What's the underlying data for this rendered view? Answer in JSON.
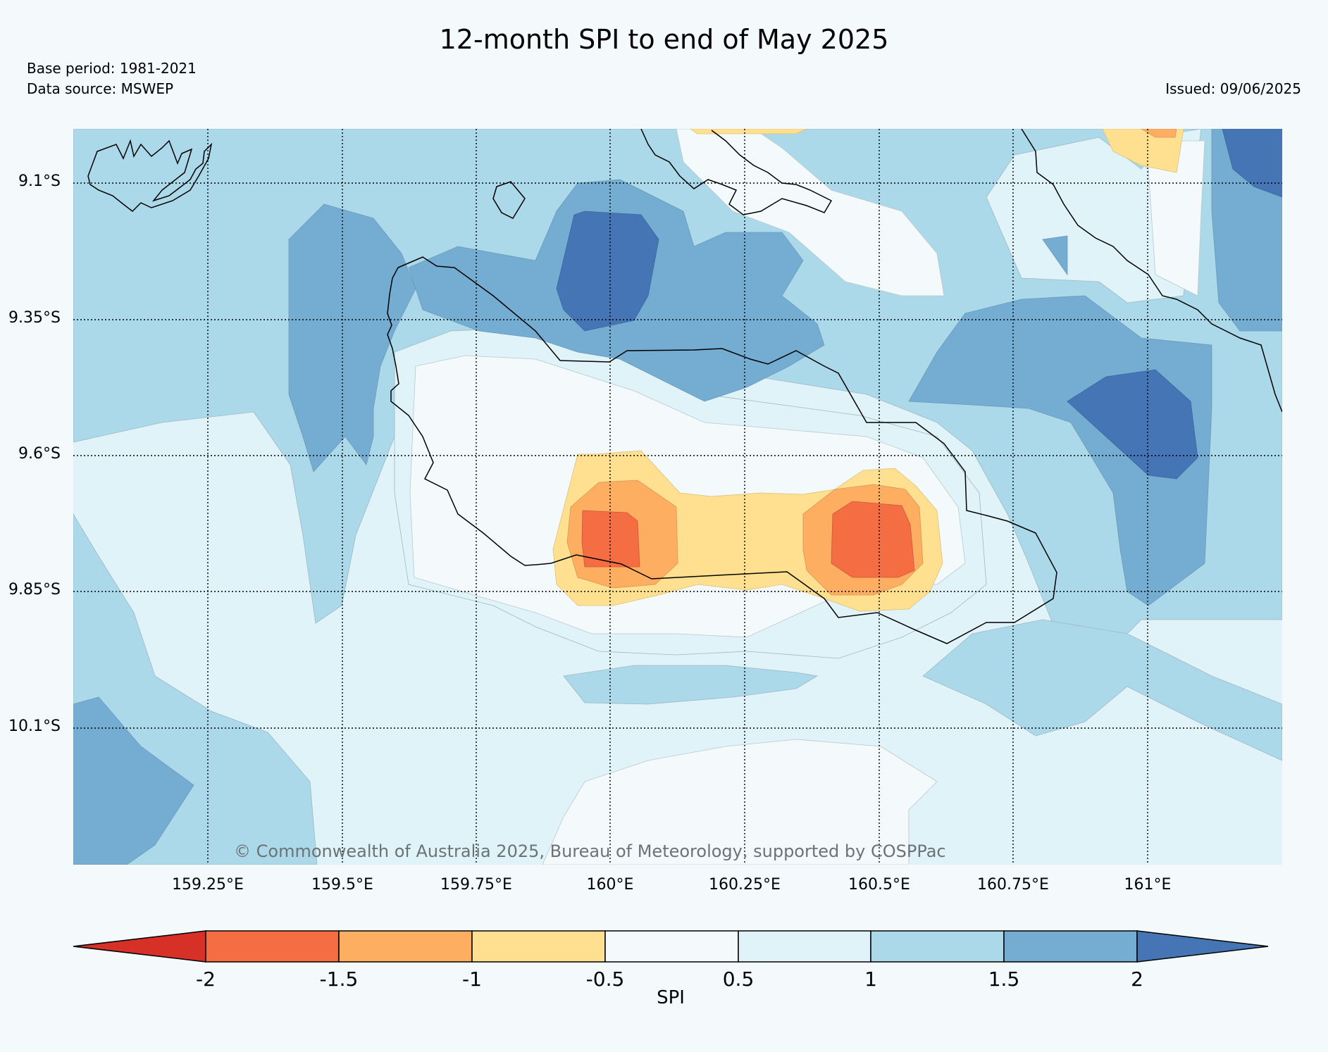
{
  "title": "12-month SPI to end of May 2025",
  "base_period": "Base period: 1981-2021",
  "data_source": "Data source: MSWEP",
  "issued": "Issued: 09/06/2025",
  "copyright": "© Commonwealth of Australia 2025, Bureau of Meteorology, supported by COSPPac",
  "map": {
    "lat_labels": [
      "9.1°S",
      "9.35°S",
      "9.6°S",
      "9.85°S",
      "10.1°S"
    ],
    "lon_labels": [
      "159.25°E",
      "159.5°E",
      "159.75°E",
      "160°E",
      "160.25°E",
      "160.5°E",
      "160.75°E",
      "161°E"
    ],
    "gridlines": "dotted"
  },
  "colorbar": {
    "label": "SPI",
    "ticks": [
      "-2",
      "-1.5",
      "-1",
      "-0.5",
      "0.5",
      "1",
      "1.5",
      "2"
    ],
    "colors": [
      "#d73027",
      "#f46d43",
      "#fdae61",
      "#fee090",
      "#f4fafc",
      "#e0f3f8",
      "#abd9e9",
      "#74add1",
      "#4575b4"
    ],
    "extend": "both"
  }
}
